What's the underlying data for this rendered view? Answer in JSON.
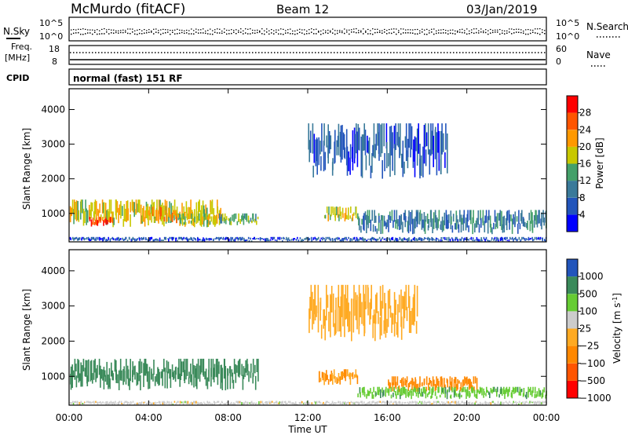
{
  "header": {
    "station": "McMurdo (fitACF)",
    "beam": "Beam 12",
    "date": "03/Jan/2019"
  },
  "noise_panel": {
    "left_label": "N.Sky",
    "right_label": "N.Search",
    "left_ticks": [
      "10^5",
      "10^0"
    ],
    "right_ticks": [
      "10^5",
      "10^0"
    ]
  },
  "freq_panel": {
    "left_label_1": "Freq.",
    "left_label_2": "[MHz]",
    "right_label": "Nave",
    "left_ticks": [
      "18",
      "8"
    ],
    "right_ticks": [
      "60",
      "0"
    ]
  },
  "cpid_panel": {
    "label": "CPID",
    "text": "normal (fast) 151 RF"
  },
  "x_axis": {
    "label": "Time UT",
    "ticks": [
      "00:00",
      "04:00",
      "08:00",
      "12:00",
      "16:00",
      "20:00",
      "00:00"
    ]
  },
  "power_colorbar": {
    "label": "Power [dB]",
    "ticks": [
      "28",
      "24",
      "20",
      "16",
      "12",
      "8",
      "4"
    ]
  },
  "velocity_colorbar": {
    "label_main": "Velocity [m s",
    "label_exp": "-1",
    "label_end": "]",
    "ticks": [
      "1000",
      "500",
      "100",
      "25",
      "−25",
      "−100",
      "−500",
      "−1000"
    ]
  },
  "chart_data": [
    {
      "type": "heatmap",
      "name": "power",
      "xlabel": "Time UT",
      "ylabel": "Slant Range [km]",
      "xlim": [
        0,
        24
      ],
      "ylim": [
        180,
        4600
      ],
      "y_ticks": [
        1000,
        2000,
        3000,
        4000
      ],
      "color_scale": [
        "#0000ff",
        "#2255bb",
        "#3a7a9a",
        "#44a06a",
        "#c8c800",
        "#ff9900",
        "#ff5500",
        "#ff0000"
      ],
      "regions": [
        {
          "t": [
            0.0,
            7.6
          ],
          "r": [
            600,
            1400
          ],
          "level": 18
        },
        {
          "t": [
            1.0,
            2.2
          ],
          "r": [
            620,
            900
          ],
          "level": 26
        },
        {
          "t": [
            3.8,
            5.5
          ],
          "r": [
            700,
            1200
          ],
          "level": 22
        },
        {
          "t": [
            5.5,
            7.5
          ],
          "r": [
            650,
            1000
          ],
          "level": 18
        },
        {
          "t": [
            7.5,
            9.5
          ],
          "r": [
            650,
            1000
          ],
          "level": 14
        },
        {
          "t": [
            12.8,
            14.5
          ],
          "r": [
            750,
            1200
          ],
          "level": 18
        },
        {
          "t": [
            14.5,
            24.0
          ],
          "r": [
            400,
            1100
          ],
          "level": 10
        },
        {
          "t": [
            12.0,
            19.0
          ],
          "r": [
            2000,
            3600
          ],
          "level": 7
        },
        {
          "t": [
            0.0,
            24.0
          ],
          "r": [
            180,
            320
          ],
          "level": 6
        }
      ]
    },
    {
      "type": "heatmap",
      "name": "velocity",
      "xlabel": "Time UT",
      "ylabel": "Slant Range [km]",
      "xlim": [
        0,
        24
      ],
      "ylim": [
        180,
        4600
      ],
      "y_ticks": [
        1000,
        2000,
        3000,
        4000
      ],
      "color_scale": [
        "#ff0000",
        "#ff5500",
        "#ff8800",
        "#ffaa22",
        "#cccccc",
        "#66cc33",
        "#3a8a5a",
        "#2255bb"
      ],
      "regions": [
        {
          "t": [
            0.0,
            9.5
          ],
          "r": [
            600,
            1500
          ],
          "velocity": 150
        },
        {
          "t": [
            12.5,
            14.5
          ],
          "r": [
            750,
            1200
          ],
          "velocity": -100
        },
        {
          "t": [
            16.0,
            20.5
          ],
          "r": [
            550,
            1000
          ],
          "velocity": -300
        },
        {
          "t": [
            12.0,
            17.5
          ],
          "r": [
            2000,
            3600
          ],
          "velocity": -60
        },
        {
          "t": [
            14.5,
            24.0
          ],
          "r": [
            350,
            700
          ],
          "velocity": 80
        },
        {
          "t": [
            0.0,
            24.0
          ],
          "r": [
            180,
            300
          ],
          "velocity": 0
        }
      ]
    }
  ]
}
